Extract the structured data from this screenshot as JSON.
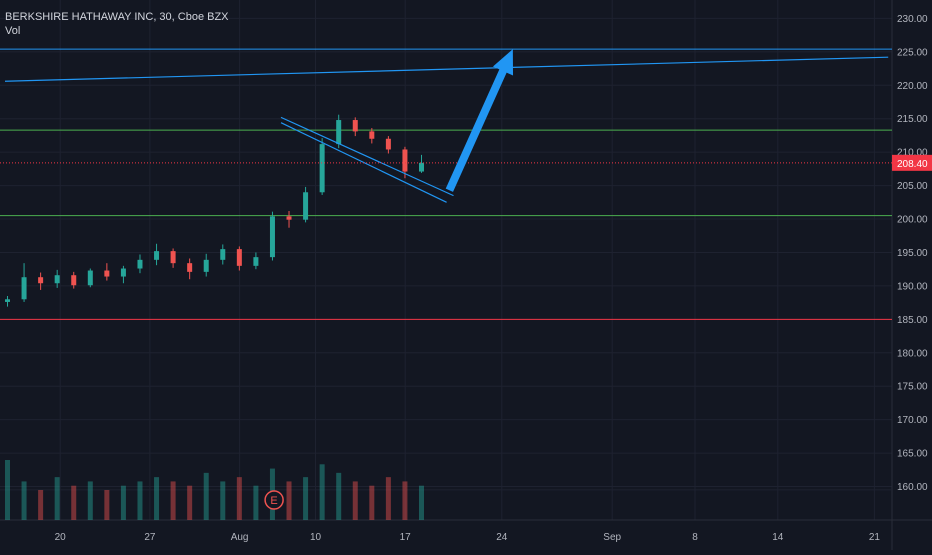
{
  "legend": {
    "symbol": "BERKSHIRE HATHAWAY INC, 30, Cboe BZX",
    "volume_label": "Vol"
  },
  "colors": {
    "background": "#131722",
    "grid": "#1e2230",
    "axis_text": "#b2b5be",
    "up": "#26a69a",
    "down": "#ef5350",
    "trendline": "#2196f3",
    "arrow": "#2196f3",
    "support_green": "#4caf50",
    "support_red": "#f23645",
    "price_tag": "#f23645"
  },
  "chart_data": {
    "type": "candlestick",
    "title": "",
    "y_axis": {
      "range": [
        155,
        232
      ],
      "ticks": [
        "160.00",
        "165.00",
        "170.00",
        "175.00",
        "180.00",
        "185.00",
        "190.00",
        "195.00",
        "200.00",
        "205.00",
        "210.00",
        "215.00",
        "220.00",
        "225.00",
        "230.00"
      ]
    },
    "x_axis": {
      "tick_labels": [
        "20",
        "27",
        "Aug",
        "10",
        "17",
        "24",
        "Sep",
        "8",
        "14",
        "21"
      ]
    },
    "last_price": "208.40",
    "price_series": [
      {
        "t": "Jul 14",
        "o": 187.6,
        "h": 188.5,
        "l": 186.9,
        "c": 188.0
      },
      {
        "t": "Jul 15",
        "o": 188.0,
        "h": 193.4,
        "l": 187.6,
        "c": 191.3
      },
      {
        "t": "Jul 16",
        "o": 191.3,
        "h": 192.0,
        "l": 189.4,
        "c": 190.4
      },
      {
        "t": "Jul 17",
        "o": 190.4,
        "h": 192.4,
        "l": 189.7,
        "c": 191.6
      },
      {
        "t": "Jul 20",
        "o": 191.6,
        "h": 192.1,
        "l": 189.6,
        "c": 190.1
      },
      {
        "t": "Jul 21",
        "o": 190.1,
        "h": 192.6,
        "l": 189.8,
        "c": 192.3
      },
      {
        "t": "Jul 22",
        "o": 192.3,
        "h": 193.4,
        "l": 190.8,
        "c": 191.4
      },
      {
        "t": "Jul 23",
        "o": 191.4,
        "h": 193.0,
        "l": 190.4,
        "c": 192.6
      },
      {
        "t": "Jul 24",
        "o": 192.6,
        "h": 194.7,
        "l": 191.9,
        "c": 193.9
      },
      {
        "t": "Jul 27",
        "o": 193.9,
        "h": 196.3,
        "l": 193.1,
        "c": 195.2
      },
      {
        "t": "Jul 28",
        "o": 195.2,
        "h": 195.6,
        "l": 192.7,
        "c": 193.4
      },
      {
        "t": "Jul 29",
        "o": 193.4,
        "h": 194.1,
        "l": 191.0,
        "c": 192.1
      },
      {
        "t": "Jul 30",
        "o": 192.1,
        "h": 194.8,
        "l": 191.4,
        "c": 193.9
      },
      {
        "t": "Jul 31",
        "o": 193.9,
        "h": 196.2,
        "l": 193.2,
        "c": 195.5
      },
      {
        "t": "Aug 3",
        "o": 195.5,
        "h": 195.9,
        "l": 192.3,
        "c": 193.0
      },
      {
        "t": "Aug 4",
        "o": 193.0,
        "h": 195.0,
        "l": 192.5,
        "c": 194.3
      },
      {
        "t": "Aug 5",
        "o": 194.3,
        "h": 201.1,
        "l": 193.8,
        "c": 200.4
      },
      {
        "t": "Aug 6",
        "o": 200.4,
        "h": 201.2,
        "l": 198.7,
        "c": 199.9
      },
      {
        "t": "Aug 7",
        "o": 199.9,
        "h": 204.8,
        "l": 199.5,
        "c": 204.0
      },
      {
        "t": "Aug 10",
        "o": 204.0,
        "h": 212.1,
        "l": 203.6,
        "c": 211.2
      },
      {
        "t": "Aug 11",
        "o": 211.2,
        "h": 215.6,
        "l": 210.6,
        "c": 214.8
      },
      {
        "t": "Aug 12",
        "o": 214.8,
        "h": 215.2,
        "l": 212.4,
        "c": 213.1
      },
      {
        "t": "Aug 13",
        "o": 213.1,
        "h": 213.6,
        "l": 211.3,
        "c": 212.0
      },
      {
        "t": "Aug 14",
        "o": 212.0,
        "h": 212.4,
        "l": 209.8,
        "c": 210.4
      },
      {
        "t": "Aug 17",
        "o": 210.4,
        "h": 210.8,
        "l": 206.1,
        "c": 207.1
      },
      {
        "t": "Aug 18",
        "o": 207.1,
        "h": 209.6,
        "l": 206.9,
        "c": 208.4
      }
    ],
    "volume_series": [
      14,
      9,
      7,
      10,
      8,
      9,
      7,
      8,
      9,
      10,
      9,
      8,
      11,
      9,
      10,
      8,
      12,
      9,
      10,
      13,
      11,
      9,
      8,
      10,
      9,
      8
    ],
    "horizontal_lines": [
      {
        "price": 225.4,
        "color_key": "trendline"
      },
      {
        "price": 213.3,
        "color_key": "support_green"
      },
      {
        "price": 200.5,
        "color_key": "support_green"
      },
      {
        "price": 185.0,
        "color_key": "support_red"
      },
      {
        "price": 159.5,
        "color_key": "grid"
      }
    ],
    "trend_lines": [
      {
        "from": {
          "day": 0,
          "price": 220.6
        },
        "to": {
          "day": 64,
          "price": 224.2
        },
        "style": "long resistance"
      },
      {
        "from": {
          "day": 20,
          "price": 215.2
        },
        "to": {
          "day": 32.5,
          "price": 203.5
        },
        "style": "channel upper"
      },
      {
        "from": {
          "day": 20,
          "price": 214.4
        },
        "to": {
          "day": 32,
          "price": 202.5
        },
        "style": "channel lower"
      }
    ],
    "arrow": {
      "from": {
        "day": 32.2,
        "price": 204.3
      },
      "to": {
        "day": 36.8,
        "price": 225.4
      }
    },
    "earnings_marker": {
      "label": "E",
      "day": 19.5
    }
  }
}
